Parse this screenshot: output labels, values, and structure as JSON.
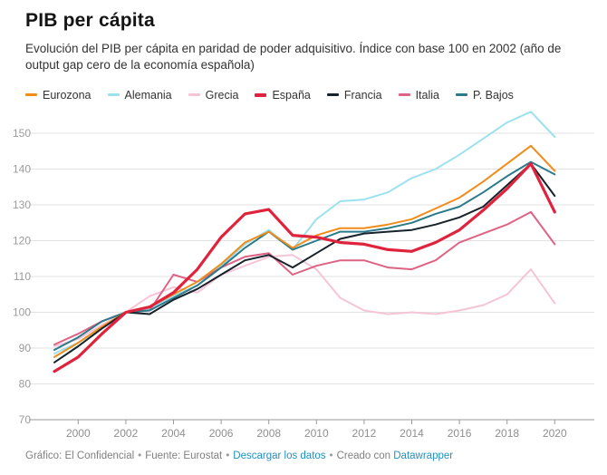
{
  "header": {
    "title": "PIB per cápita",
    "subtitle": "Evolución del PIB per cápita en paridad de poder adquisitivo. Índice con base 100 en 2002 (año de output gap cero de la economía española)"
  },
  "footer": {
    "credit": "Gráfico: El Confidencial",
    "source": "Fuente: Eurostat",
    "download_label": "Descargar los datos",
    "created_with": "Creado con",
    "datawrapper_label": "Datawrapper",
    "sep": "•",
    "link_color": "#2191c0"
  },
  "chart_data": {
    "type": "line",
    "title": "PIB per cápita",
    "xlabel": "",
    "ylabel": "",
    "grid": true,
    "legend_position": "top",
    "ylim": [
      70,
      150
    ],
    "yticks": [
      70,
      80,
      90,
      100,
      110,
      120,
      130,
      140,
      150
    ],
    "xticks": [
      2000,
      2002,
      2004,
      2006,
      2008,
      2010,
      2012,
      2014,
      2016,
      2018,
      2020
    ],
    "x": [
      1999,
      2000,
      2001,
      2002,
      2003,
      2004,
      2005,
      2006,
      2007,
      2008,
      2009,
      2010,
      2011,
      2012,
      2013,
      2014,
      2015,
      2016,
      2017,
      2018,
      2019,
      2020
    ],
    "series": [
      {
        "id": "eurozona",
        "name": "Eurozona",
        "color": "#f08c1a",
        "width": 2,
        "z": 5,
        "values": [
          87.5,
          91.5,
          96,
          100,
          101.5,
          105,
          108.5,
          113.5,
          119.5,
          122.5,
          118,
          121.5,
          123.5,
          123.5,
          124.5,
          126,
          129,
          132,
          136.5,
          141.5,
          146.5,
          139.5
        ]
      },
      {
        "id": "alemania",
        "name": "Alemania",
        "color": "#9be1ef",
        "width": 2,
        "z": 2,
        "values": [
          88.5,
          91.5,
          95.5,
          100,
          101,
          104.5,
          107.5,
          113,
          119,
          123,
          117.5,
          126,
          131,
          131.5,
          133.5,
          137.5,
          140,
          144,
          148.5,
          153,
          156,
          149
        ]
      },
      {
        "id": "grecia",
        "name": "Grecia",
        "color": "#f5c4d6",
        "width": 2,
        "z": 1,
        "values": [
          90.5,
          92.5,
          96.5,
          100,
          104.5,
          107,
          105.5,
          110.5,
          113,
          115.5,
          116,
          112,
          104,
          100.5,
          99.5,
          100,
          99.5,
          100.5,
          102,
          105,
          112,
          102.5
        ]
      },
      {
        "id": "espana",
        "name": "España",
        "color": "#e0233c",
        "width": 3.2,
        "z": 7,
        "values": [
          83.5,
          87.5,
          94,
          100,
          101.5,
          105.5,
          112,
          121,
          127.5,
          128.7,
          121.5,
          121,
          119.5,
          119,
          117.5,
          117,
          119.5,
          123,
          128.5,
          134.5,
          141.5,
          128
        ]
      },
      {
        "id": "francia",
        "name": "Francia",
        "color": "#17222b",
        "width": 2,
        "z": 6,
        "values": [
          86,
          90.5,
          95.5,
          100,
          99.5,
          103.5,
          106.5,
          110.5,
          114.5,
          116,
          112.5,
          116.5,
          120.5,
          122,
          122.5,
          123,
          124.5,
          126.5,
          129.5,
          135.5,
          141.5,
          132.5
        ]
      },
      {
        "id": "italia",
        "name": "Italia",
        "color": "#dd6384",
        "width": 2,
        "z": 3,
        "values": [
          91,
          94,
          97.5,
          100,
          100.5,
          110.5,
          108.5,
          112.5,
          115.5,
          116.5,
          110.5,
          113,
          114.5,
          114.5,
          112.5,
          112,
          114.5,
          119.5,
          122,
          124.5,
          128,
          119
        ]
      },
      {
        "id": "pbajos",
        "name": "P. Bajos",
        "color": "#2b7a8b",
        "width": 2,
        "z": 4,
        "values": [
          89.5,
          93,
          97.5,
          100,
          100.5,
          104,
          107.5,
          112.5,
          118,
          122.5,
          117.5,
          120,
          122.5,
          122.5,
          123.5,
          125,
          127.5,
          129.5,
          133.5,
          138,
          142,
          138.5
        ]
      }
    ]
  }
}
